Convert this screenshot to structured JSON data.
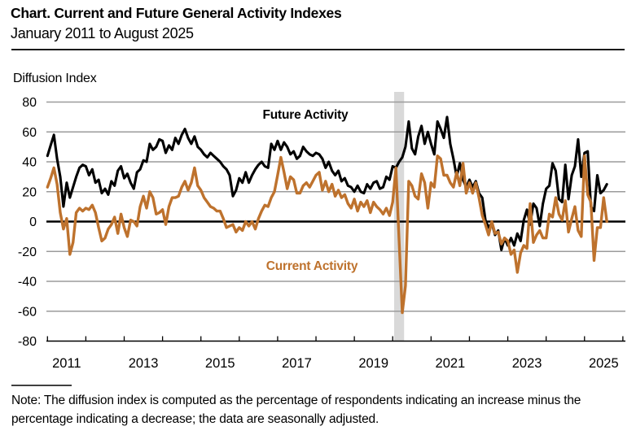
{
  "header": {
    "title": "Chart. Current and Future General Activity Indexes",
    "subtitle": "January 2011 to August 2025"
  },
  "chart": {
    "y_axis_title": "Diffusion Index",
    "future_series_label": "Future Activity",
    "current_series_label": "Current Activity"
  },
  "note": {
    "text": "Note: The diffusion index is computed as the percentage of respondents indicating an increase minus the percentage indicating a decrease; the data are seasonally adjusted."
  },
  "colors": {
    "future_line": "#000000",
    "current_line": "#BE722D",
    "gridline": "#9b9b9b",
    "zero_line": "#000000",
    "axis_line": "#000000",
    "recession_band": "#d9d9d9"
  },
  "chart_data": {
    "type": "line",
    "title": "Current and Future General Activity Indexes",
    "xlabel": "",
    "ylabel": "Diffusion Index",
    "x_unit": "month",
    "x_start": "2011-01",
    "x_end": "2025-08",
    "ylim": [
      -80,
      80
    ],
    "grid": "horizontal",
    "y_ticks": [
      80,
      60,
      40,
      20,
      0,
      -20,
      -40,
      -60,
      -80
    ],
    "x_tick_labels": [
      "2011",
      "2013",
      "2015",
      "2017",
      "2019",
      "2021",
      "2023",
      "2025"
    ],
    "recession_band": {
      "from": "2020-02",
      "to": "2020-04"
    },
    "series": [
      {
        "name": "Future Activity",
        "color": "#000000",
        "values": [
          44,
          51,
          58,
          42,
          30,
          10,
          26,
          16,
          23,
          30,
          36,
          38,
          37,
          31,
          35,
          26,
          28,
          19,
          22,
          18,
          27,
          24,
          34,
          37,
          29,
          32,
          26,
          22,
          33,
          35,
          41,
          40,
          52,
          48,
          50,
          55,
          54,
          46,
          51,
          48,
          56,
          52,
          58,
          62,
          56,
          52,
          57,
          50,
          48,
          45,
          43,
          46,
          44,
          42,
          40,
          37,
          35,
          31,
          17,
          21,
          29,
          26,
          33,
          26,
          31,
          35,
          38,
          40,
          37,
          36,
          52,
          48,
          54,
          48,
          53,
          50,
          45,
          47,
          42,
          44,
          50,
          47,
          45,
          44,
          46,
          45,
          42,
          36,
          40,
          34,
          31,
          34,
          27,
          29,
          24,
          23,
          20,
          24,
          20,
          19,
          25,
          22,
          26,
          27,
          22,
          23,
          30,
          28,
          37,
          36,
          40,
          43,
          50,
          67,
          49,
          45,
          57,
          64,
          52,
          60,
          52,
          45,
          67,
          62,
          56,
          70,
          52,
          42,
          30,
          39,
          28,
          23,
          28,
          23,
          27,
          19,
          16,
          1,
          -4,
          -1,
          -9,
          -6,
          -19,
          -11,
          -16,
          -11,
          -16,
          -8,
          -13,
          1,
          8,
          -2,
          12,
          9,
          -3,
          12,
          22,
          24,
          39,
          34,
          15,
          13,
          38,
          15,
          31,
          37,
          55,
          30,
          46,
          47,
          10,
          7,
          31,
          19,
          21,
          25
        ]
      },
      {
        "name": "Current Activity",
        "color": "#BE722D",
        "values": [
          23,
          29,
          36,
          25,
          6,
          -5,
          2,
          -22,
          -14,
          6,
          9,
          7,
          9,
          8,
          11,
          6,
          -4,
          -13,
          -11,
          -5,
          -2,
          3,
          -8,
          5,
          -4,
          -10,
          1,
          0,
          -3,
          10,
          17,
          9,
          20,
          16,
          5,
          6,
          8,
          -2,
          10,
          16,
          16,
          17,
          23,
          27,
          21,
          26,
          36,
          24,
          21,
          16,
          13,
          10,
          9,
          7,
          7,
          2,
          -4,
          -3,
          -2,
          -7,
          -4,
          -6,
          0,
          -3,
          0,
          -5,
          2,
          7,
          11,
          10,
          16,
          20,
          31,
          43,
          33,
          22,
          30,
          28,
          19,
          19,
          24,
          26,
          23,
          27,
          31,
          33,
          21,
          27,
          20,
          25,
          17,
          21,
          16,
          18,
          12,
          9,
          15,
          7,
          13,
          10,
          14,
          6,
          13,
          10,
          8,
          5,
          9,
          4,
          13,
          36,
          -13,
          -61,
          -43,
          27,
          24,
          17,
          15,
          32,
          26,
          9,
          26,
          23,
          44,
          42,
          31,
          31,
          26,
          23,
          33,
          24,
          39,
          19,
          26,
          19,
          26,
          16,
          4,
          -2,
          -9,
          0,
          -8,
          -7,
          -15,
          -11,
          -13,
          -22,
          -19,
          -34,
          -21,
          -16,
          -18,
          12,
          -14,
          -9,
          -6,
          -11,
          -11,
          5,
          3,
          16,
          5,
          1,
          14,
          -7,
          2,
          10,
          -6,
          -10,
          44,
          18,
          13,
          -26,
          -4,
          -4,
          16,
          0
        ]
      }
    ]
  }
}
